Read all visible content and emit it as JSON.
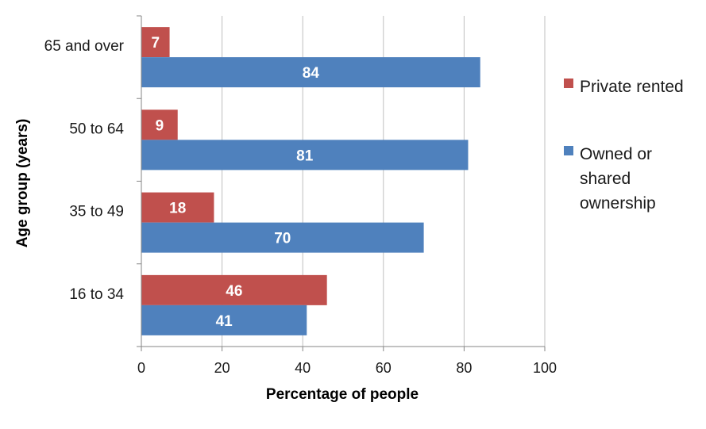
{
  "chart_data": {
    "type": "bar",
    "orientation": "horizontal",
    "categories": [
      "65 and over",
      "50 to 64",
      "35 to 49",
      "16 to 34"
    ],
    "series": [
      {
        "name": "Private rented",
        "color": "#C0504D",
        "values": [
          7,
          9,
          18,
          46
        ]
      },
      {
        "name": "Owned or shared ownership",
        "color": "#4F81BD",
        "values": [
          84,
          81,
          70,
          41
        ]
      }
    ],
    "xlabel": "Percentage of people",
    "ylabel": "Age group (years)",
    "xlim": [
      0,
      100
    ],
    "xticks": [
      "0",
      "20",
      "40",
      "60",
      "80",
      "100"
    ],
    "grid": "vertical",
    "legend": {
      "placement": "right",
      "items": [
        {
          "lines": [
            "Private rented"
          ]
        },
        {
          "lines": [
            "Owned or",
            "shared",
            "ownership"
          ]
        }
      ]
    },
    "data_labels": true
  }
}
